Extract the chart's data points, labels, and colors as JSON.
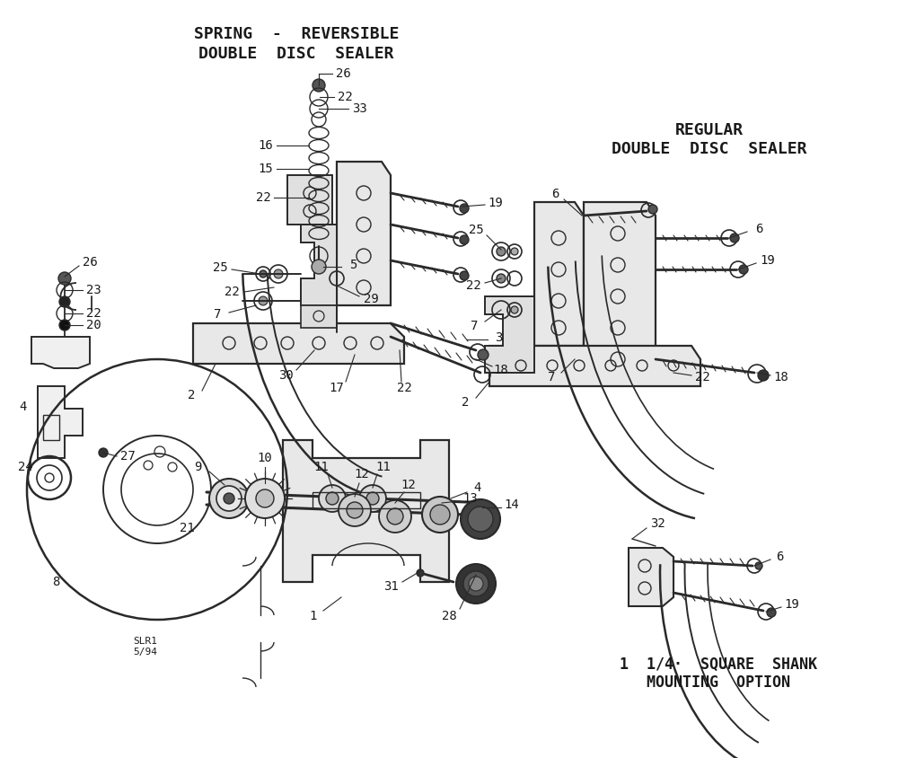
{
  "bg_color": "#ffffff",
  "lc": "#2a2a2a",
  "tc": "#1a1a1a",
  "title_spring": "SPRING  -  REVERSIBLE",
  "title_spring2": "DOUBLE  DISC  SEALER",
  "title_regular": "REGULAR",
  "title_regular2": "DOUBLE  DISC  SEALER",
  "title_shank": "1  1/4·  SQUARE  SHANK",
  "title_shank2": "MOUNTING  OPTION",
  "watermark": "SLR1\n5/94",
  "fig_w": 10.0,
  "fig_h": 8.44,
  "dpi": 100
}
